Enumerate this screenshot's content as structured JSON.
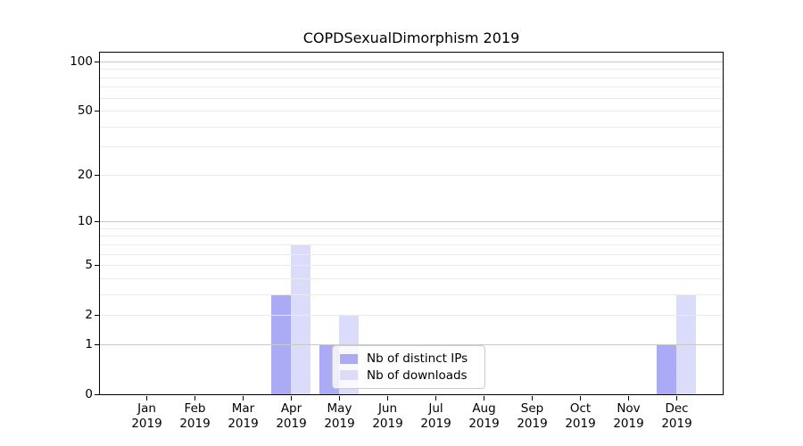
{
  "figure": {
    "title": "COPDSexualDimorphism 2019"
  },
  "chart_data": {
    "type": "bar",
    "title": "COPDSexualDimorphism 2019",
    "categories": [
      "Jan 2019",
      "Feb 2019",
      "Mar 2019",
      "Apr 2019",
      "May 2019",
      "Jun 2019",
      "Jul 2019",
      "Aug 2019",
      "Sep 2019",
      "Oct 2019",
      "Nov 2019",
      "Dec 2019"
    ],
    "months": [
      "Jan",
      "Feb",
      "Mar",
      "Apr",
      "May",
      "Jun",
      "Jul",
      "Aug",
      "Sep",
      "Oct",
      "Nov",
      "Dec"
    ],
    "year": "2019",
    "series": [
      {
        "name": "Nb of distinct IPs",
        "color": "#aaaaf6",
        "values": [
          0,
          0,
          0,
          3,
          1,
          0,
          0,
          0,
          0,
          0,
          0,
          1
        ]
      },
      {
        "name": "Nb of downloads",
        "color": "#dbdbfa",
        "values": [
          0,
          0,
          0,
          7,
          2,
          0,
          0,
          0,
          0,
          0,
          0,
          3
        ]
      }
    ],
    "xlabel": "",
    "ylabel": "",
    "yscale": "log1p",
    "ylim": [
      0,
      113
    ],
    "yticks": [
      0,
      1,
      2,
      5,
      10,
      20,
      50,
      100
    ],
    "grid_major": [
      1,
      10,
      100
    ],
    "grid_minor": [
      2,
      3,
      4,
      5,
      6,
      7,
      8,
      9,
      20,
      30,
      40,
      50,
      60,
      70,
      80,
      90
    ],
    "grid": true,
    "legend_position": "inside lower-center"
  },
  "colors": {
    "bar_distinct_ips": "#aaaaf6",
    "bar_downloads": "#dbdbfa",
    "grid_major": "#c9c9c9",
    "grid_minor": "#ebebeb",
    "axis": "#000000",
    "text": "#000000",
    "legend_border": "#cccccc",
    "legend_background": "rgba(255,255,255,0.8)"
  }
}
